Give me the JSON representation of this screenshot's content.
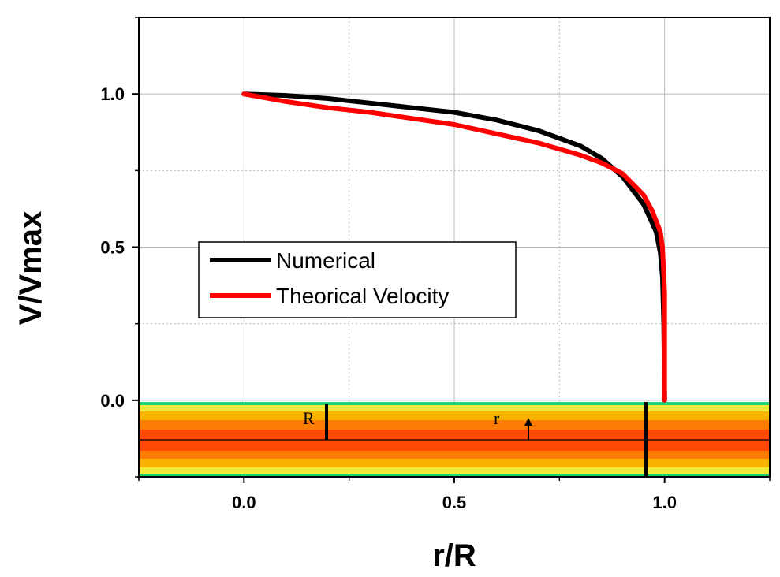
{
  "chart_data": {
    "type": "line",
    "title": "",
    "xlabel": "r/R",
    "ylabel": "V/Vmax",
    "xlim": [
      -0.25,
      1.25
    ],
    "ylim": [
      -0.25,
      1.25
    ],
    "x_ticks": [
      0.0,
      0.5,
      1.0
    ],
    "x_tick_labels": [
      "0.0",
      "0.5",
      "1.0"
    ],
    "y_ticks": [
      0.0,
      0.5,
      1.0
    ],
    "y_tick_labels": [
      "0.0",
      "0.5",
      "1.0"
    ],
    "grid": true,
    "legend_position": "center-left",
    "series": [
      {
        "name": "Numerical",
        "color": "#000000",
        "points": [
          [
            0.0,
            1.0
          ],
          [
            0.1,
            0.995
          ],
          [
            0.2,
            0.985
          ],
          [
            0.3,
            0.97
          ],
          [
            0.4,
            0.955
          ],
          [
            0.5,
            0.94
          ],
          [
            0.6,
            0.915
          ],
          [
            0.7,
            0.88
          ],
          [
            0.8,
            0.83
          ],
          [
            0.85,
            0.79
          ],
          [
            0.9,
            0.73
          ],
          [
            0.95,
            0.64
          ],
          [
            0.97,
            0.58
          ],
          [
            0.98,
            0.55
          ],
          [
            0.99,
            0.48
          ],
          [
            0.995,
            0.4
          ],
          [
            0.998,
            0.25
          ],
          [
            1.0,
            0.0
          ]
        ]
      },
      {
        "name": "Theorical Velocity",
        "color": "#ff0000",
        "points": [
          [
            0.0,
            1.0
          ],
          [
            0.1,
            0.975
          ],
          [
            0.2,
            0.955
          ],
          [
            0.3,
            0.94
          ],
          [
            0.4,
            0.92
          ],
          [
            0.5,
            0.9
          ],
          [
            0.6,
            0.87
          ],
          [
            0.7,
            0.84
          ],
          [
            0.8,
            0.8
          ],
          [
            0.85,
            0.775
          ],
          [
            0.9,
            0.74
          ],
          [
            0.95,
            0.67
          ],
          [
            0.97,
            0.62
          ],
          [
            0.99,
            0.55
          ],
          [
            0.995,
            0.5
          ],
          [
            1.0,
            0.35
          ],
          [
            1.0,
            0.0
          ]
        ]
      }
    ],
    "inset": {
      "labels": {
        "R": "R",
        "r": "r"
      },
      "colors": [
        "#2ecc71",
        "#f5e642",
        "#f7b500",
        "#f77f00",
        "#ff4500"
      ]
    }
  }
}
